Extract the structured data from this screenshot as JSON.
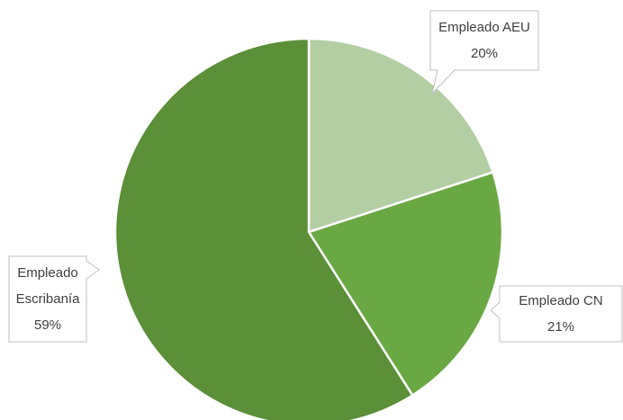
{
  "chart_data": {
    "type": "pie",
    "categories": [
      "Empleado AEU",
      "Empleado CN",
      "Empleado Escribanía"
    ],
    "values": [
      20,
      21,
      59
    ],
    "value_labels": [
      "20%",
      "21%",
      "59%"
    ],
    "colors": [
      "#b4cea3",
      "#6aa843",
      "#5b8f38"
    ]
  }
}
